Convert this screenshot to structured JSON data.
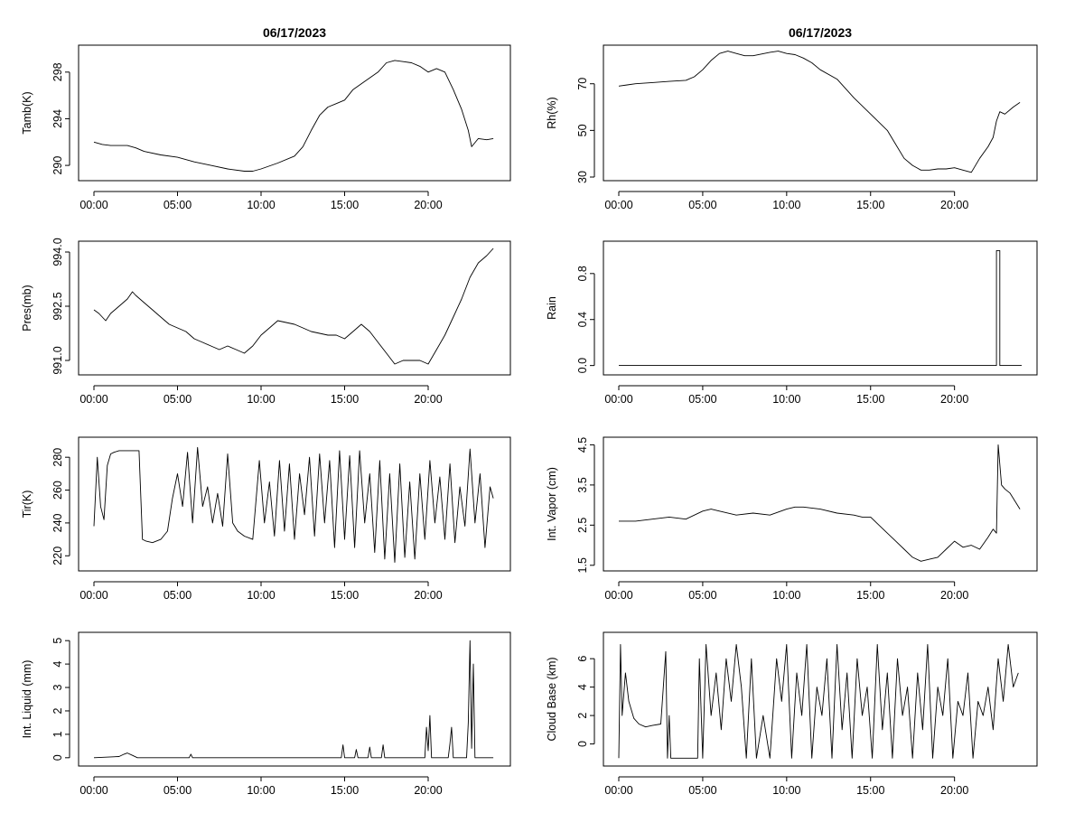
{
  "chart_data": [
    {
      "type": "line",
      "title": "06/17/2023",
      "ylabel": "Tamb(K)",
      "xlabel": "",
      "xlim": [
        0,
        24
      ],
      "ylim": [
        289,
        300
      ],
      "x_ticks": [
        0,
        5,
        10,
        15,
        20
      ],
      "x_tick_labels": [
        "00:00",
        "05:00",
        "10:00",
        "15:00",
        "20:00"
      ],
      "y_ticks": [
        290,
        294,
        298
      ],
      "y_tick_labels": [
        "290",
        "294",
        "298"
      ],
      "series": [
        {
          "name": "Tamb",
          "x": [
            0,
            0.5,
            1,
            2,
            2.5,
            3,
            4,
            5,
            6,
            7,
            8,
            9,
            9.5,
            10,
            11,
            12,
            12.5,
            13,
            13.5,
            14,
            14.5,
            15,
            15.5,
            16,
            17,
            17.5,
            18,
            18.5,
            19,
            19.5,
            20,
            20.5,
            21,
            21.5,
            22,
            22.4,
            22.6,
            23,
            23.5,
            23.9
          ],
          "y": [
            292,
            291.8,
            291.7,
            291.7,
            291.5,
            291.2,
            290.9,
            290.7,
            290.3,
            290.0,
            289.7,
            289.5,
            289.5,
            289.7,
            290.2,
            290.8,
            291.6,
            293.0,
            294.3,
            295.0,
            295.3,
            295.6,
            296.5,
            297.0,
            298.0,
            298.8,
            299.0,
            298.9,
            298.8,
            298.5,
            298.0,
            298.3,
            298.0,
            296.5,
            294.8,
            293.0,
            291.6,
            292.3,
            292.2,
            292.3
          ]
        }
      ]
    },
    {
      "type": "line",
      "title": "06/17/2023",
      "ylabel": "Rh(%)",
      "xlabel": "",
      "xlim": [
        0,
        24
      ],
      "ylim": [
        30,
        85
      ],
      "x_ticks": [
        0,
        5,
        10,
        15,
        20
      ],
      "x_tick_labels": [
        "00:00",
        "05:00",
        "10:00",
        "15:00",
        "20:00"
      ],
      "y_ticks": [
        30,
        50,
        70
      ],
      "y_tick_labels": [
        "30",
        "50",
        "70"
      ],
      "series": [
        {
          "name": "Rh",
          "x": [
            0,
            0.5,
            1,
            2,
            3,
            4,
            4.5,
            5,
            5.5,
            6,
            6.5,
            7,
            7.5,
            8,
            9,
            9.5,
            10,
            10.5,
            11,
            11.5,
            12,
            13,
            14,
            15,
            16,
            16.5,
            17,
            17.5,
            18,
            18.5,
            19,
            19.5,
            20,
            20.5,
            21,
            21.5,
            22,
            22.3,
            22.5,
            22.7,
            23,
            23.5,
            23.9
          ],
          "y": [
            69,
            69.5,
            70,
            70.5,
            71,
            71.5,
            73,
            76,
            80,
            83,
            84,
            83,
            82,
            82,
            83.5,
            84,
            83,
            82.5,
            81,
            79,
            76,
            72,
            64,
            57,
            50,
            44,
            38,
            35,
            33,
            33,
            33.5,
            33.5,
            34,
            33,
            32,
            38,
            43,
            47,
            54,
            58,
            57,
            60,
            62
          ]
        }
      ]
    },
    {
      "type": "line",
      "title": "",
      "ylabel": "Pres(mb)",
      "xlabel": "",
      "xlim": [
        0,
        24
      ],
      "ylim": [
        990.7,
        994.2
      ],
      "x_ticks": [
        0,
        5,
        10,
        15,
        20
      ],
      "x_tick_labels": [
        "00:00",
        "05:00",
        "10:00",
        "15:00",
        "20:00"
      ],
      "y_ticks": [
        991.0,
        992.5,
        994.0
      ],
      "y_tick_labels": [
        "991.0",
        "992.5",
        "994.0"
      ],
      "series": [
        {
          "name": "Pres",
          "x": [
            0,
            0.3,
            0.7,
            1,
            1.5,
            2,
            2.3,
            2.5,
            3,
            3.5,
            4,
            4.5,
            5,
            5.5,
            6,
            6.5,
            7,
            7.5,
            8,
            8.5,
            9,
            9.5,
            10,
            10.5,
            11,
            12,
            12.5,
            13,
            14,
            14.5,
            15,
            15.5,
            16,
            16.5,
            17,
            17.5,
            18,
            18.5,
            19,
            19.5,
            20,
            20.5,
            21,
            21.5,
            22,
            22.5,
            23,
            23.5,
            23.9
          ],
          "y": [
            992.4,
            992.3,
            992.1,
            992.3,
            992.5,
            992.7,
            992.9,
            992.8,
            992.6,
            992.4,
            992.2,
            992.0,
            991.9,
            991.8,
            991.6,
            991.5,
            991.4,
            991.3,
            991.4,
            991.3,
            991.2,
            991.4,
            991.7,
            991.9,
            992.1,
            992.0,
            991.9,
            991.8,
            991.7,
            991.7,
            991.6,
            991.8,
            992.0,
            991.8,
            991.5,
            991.2,
            990.9,
            991.0,
            991.0,
            991.0,
            990.9,
            991.3,
            991.7,
            992.2,
            992.7,
            993.3,
            993.7,
            993.9,
            994.1
          ]
        }
      ]
    },
    {
      "type": "line",
      "title": "",
      "ylabel": "Rain",
      "xlabel": "",
      "xlim": [
        0,
        24
      ],
      "ylim": [
        -0.05,
        1.05
      ],
      "x_ticks": [
        0,
        5,
        10,
        15,
        20
      ],
      "x_tick_labels": [
        "00:00",
        "05:00",
        "10:00",
        "15:00",
        "20:00"
      ],
      "y_ticks": [
        0.0,
        0.4,
        0.8
      ],
      "y_tick_labels": [
        "0.0",
        "0.4",
        "0.8"
      ],
      "series": [
        {
          "name": "Rain",
          "x": [
            0,
            22.5,
            22.5,
            22.7,
            22.7,
            24
          ],
          "y": [
            0,
            0,
            1.0,
            1.0,
            0,
            0
          ]
        }
      ]
    },
    {
      "type": "line",
      "title": "",
      "ylabel": "Tir(K)",
      "xlabel": "",
      "xlim": [
        0,
        24
      ],
      "ylim": [
        213,
        290
      ],
      "x_ticks": [
        0,
        5,
        10,
        15,
        20
      ],
      "x_tick_labels": [
        "00:00",
        "05:00",
        "10:00",
        "15:00",
        "20:00"
      ],
      "y_ticks": [
        220,
        240,
        260,
        280
      ],
      "y_tick_labels": [
        "220",
        "240",
        "260",
        "280"
      ],
      "series": [
        {
          "name": "Tir",
          "x": [
            0,
            0.2,
            0.4,
            0.6,
            0.8,
            1,
            1.2,
            1.5,
            2,
            2.5,
            2.7,
            2.9,
            3.1,
            3.5,
            4,
            4.4,
            4.7,
            5,
            5.3,
            5.6,
            5.9,
            6.2,
            6.5,
            6.8,
            7.1,
            7.4,
            7.7,
            8,
            8.3,
            8.6,
            9,
            9.5,
            9.9,
            10.2,
            10.5,
            10.8,
            11.1,
            11.4,
            11.7,
            12,
            12.3,
            12.6,
            12.9,
            13.2,
            13.5,
            13.8,
            14.1,
            14.4,
            14.7,
            15,
            15.3,
            15.6,
            15.9,
            16.2,
            16.5,
            16.8,
            17.1,
            17.4,
            17.7,
            18,
            18.3,
            18.6,
            18.9,
            19.2,
            19.5,
            19.8,
            20.1,
            20.4,
            20.7,
            21,
            21.3,
            21.6,
            21.9,
            22.2,
            22.5,
            22.8,
            23.1,
            23.4,
            23.7,
            23.9
          ],
          "y": [
            238,
            280,
            250,
            242,
            275,
            282,
            283,
            284,
            284,
            284,
            284,
            230,
            229,
            228,
            230,
            235,
            255,
            270,
            250,
            283,
            240,
            286,
            250,
            262,
            240,
            258,
            238,
            282,
            240,
            235,
            232,
            230,
            278,
            240,
            265,
            232,
            278,
            235,
            276,
            230,
            270,
            245,
            280,
            232,
            282,
            240,
            278,
            225,
            284,
            230,
            281,
            225,
            284,
            240,
            270,
            222,
            278,
            218,
            270,
            216,
            276,
            219,
            265,
            218,
            270,
            230,
            278,
            240,
            268,
            230,
            276,
            228,
            262,
            238,
            285,
            240,
            270,
            225,
            262,
            255
          ]
        }
      ]
    },
    {
      "type": "line",
      "title": "",
      "ylabel": "Int. Vapor (cm)",
      "xlabel": "",
      "xlim": [
        0,
        24
      ],
      "ylim": [
        1.45,
        4.6
      ],
      "x_ticks": [
        0,
        5,
        10,
        15,
        20
      ],
      "x_tick_labels": [
        "00:00",
        "05:00",
        "10:00",
        "15:00",
        "20:00"
      ],
      "y_ticks": [
        1.5,
        2.5,
        3.5,
        4.5
      ],
      "y_tick_labels": [
        "1.5",
        "2.5",
        "3.5",
        "4.5"
      ],
      "series": [
        {
          "name": "Int. Vapor",
          "x": [
            0,
            1,
            2,
            3,
            4,
            5,
            5.5,
            6,
            7,
            8,
            9,
            10,
            10.5,
            11,
            12,
            13,
            14,
            14.5,
            15,
            15.5,
            16,
            16.5,
            17,
            17.5,
            18,
            18.5,
            19,
            19.5,
            20,
            20.5,
            21,
            21.5,
            22,
            22.3,
            22.5,
            22.6,
            22.8,
            23,
            23.3,
            23.6,
            23.9
          ],
          "y": [
            2.6,
            2.6,
            2.65,
            2.7,
            2.65,
            2.85,
            2.9,
            2.85,
            2.75,
            2.8,
            2.75,
            2.9,
            2.95,
            2.95,
            2.9,
            2.8,
            2.75,
            2.7,
            2.7,
            2.5,
            2.3,
            2.1,
            1.9,
            1.7,
            1.6,
            1.65,
            1.7,
            1.9,
            2.1,
            1.95,
            2.0,
            1.9,
            2.2,
            2.4,
            2.3,
            4.5,
            3.5,
            3.4,
            3.3,
            3.1,
            2.9
          ]
        }
      ]
    },
    {
      "type": "line",
      "title": "",
      "ylabel": "Int. Liquid (mm)",
      "xlabel": "",
      "xlim": [
        0,
        24
      ],
      "ylim": [
        -0.2,
        5.2
      ],
      "x_ticks": [
        0,
        5,
        10,
        15,
        20
      ],
      "x_tick_labels": [
        "00:00",
        "05:00",
        "10:00",
        "15:00",
        "20:00"
      ],
      "y_ticks": [
        0,
        1,
        2,
        3,
        4,
        5
      ],
      "y_tick_labels": [
        "0",
        "1",
        "2",
        "3",
        "4",
        "5"
      ],
      "series": [
        {
          "name": "Int. Liquid",
          "x": [
            0,
            1.5,
            1.8,
            2,
            2.3,
            2.6,
            5.7,
            5.8,
            5.9,
            6.1,
            14.8,
            14.9,
            15.0,
            15.6,
            15.7,
            15.8,
            16.4,
            16.5,
            16.6,
            17.2,
            17.3,
            17.4,
            19.8,
            19.9,
            20.0,
            20.1,
            20.2,
            21.2,
            21.3,
            21.4,
            21.5,
            22.3,
            22.4,
            22.5,
            22.6,
            22.7,
            22.8,
            23.9
          ],
          "y": [
            0,
            0.05,
            0.15,
            0.2,
            0.1,
            0,
            0,
            0.15,
            0,
            0,
            0,
            0.55,
            0,
            0,
            0.35,
            0,
            0,
            0.45,
            0,
            0,
            0.55,
            0,
            0,
            1.3,
            0.3,
            1.8,
            0,
            0,
            0.6,
            1.3,
            0,
            0,
            1.5,
            5.0,
            0.4,
            4.0,
            0,
            0
          ]
        }
      ]
    },
    {
      "type": "line",
      "title": "",
      "ylabel": "Cloud Base (km)",
      "xlabel": "",
      "xlim": [
        0,
        24
      ],
      "ylim": [
        -1.3,
        7.6
      ],
      "x_ticks": [
        0,
        5,
        10,
        15,
        20
      ],
      "x_tick_labels": [
        "00:00",
        "05:00",
        "10:00",
        "15:00",
        "20:00"
      ],
      "y_ticks": [
        0,
        2,
        4,
        6
      ],
      "y_tick_labels": [
        "0",
        "2",
        "4",
        "6"
      ],
      "series": [
        {
          "name": "Cloud Base",
          "x": [
            0,
            0.1,
            0.2,
            0.4,
            0.6,
            0.9,
            1.2,
            1.6,
            2.0,
            2.5,
            2.8,
            2.9,
            3.0,
            3.1,
            4.7,
            4.8,
            5.0,
            5.2,
            5.5,
            5.8,
            6.1,
            6.4,
            6.7,
            7.0,
            7.3,
            7.6,
            7.9,
            8.2,
            8.6,
            9.0,
            9.4,
            9.7,
            10.0,
            10.3,
            10.6,
            10.9,
            11.2,
            11.5,
            11.8,
            12.1,
            12.4,
            12.7,
            13.0,
            13.3,
            13.6,
            13.9,
            14.2,
            14.5,
            14.8,
            15.1,
            15.4,
            15.7,
            16.0,
            16.3,
            16.6,
            16.9,
            17.2,
            17.5,
            17.8,
            18.1,
            18.4,
            18.7,
            19.0,
            19.3,
            19.6,
            19.9,
            20.2,
            20.5,
            20.8,
            21.1,
            21.4,
            21.7,
            22.0,
            22.3,
            22.6,
            22.9,
            23.2,
            23.5,
            23.8
          ],
          "y": [
            -1,
            7,
            2,
            5,
            3,
            1.8,
            1.4,
            1.2,
            1.3,
            1.4,
            6.5,
            -1,
            2,
            -1,
            -1,
            6,
            -1,
            7,
            2,
            5,
            1,
            6,
            3,
            7,
            4,
            -1,
            6,
            -1,
            2,
            -1,
            6,
            3,
            7,
            -1,
            5,
            2,
            7,
            -1,
            4,
            2,
            6,
            -1,
            7,
            1,
            5,
            -1,
            6,
            2,
            4,
            -1,
            7,
            1,
            5,
            -1,
            6,
            2,
            4,
            -1,
            5,
            1,
            7,
            -1,
            4,
            2,
            6,
            -1,
            3,
            2,
            5,
            -1,
            3,
            2,
            4,
            1,
            6,
            3,
            7,
            4,
            5
          ]
        }
      ]
    }
  ]
}
